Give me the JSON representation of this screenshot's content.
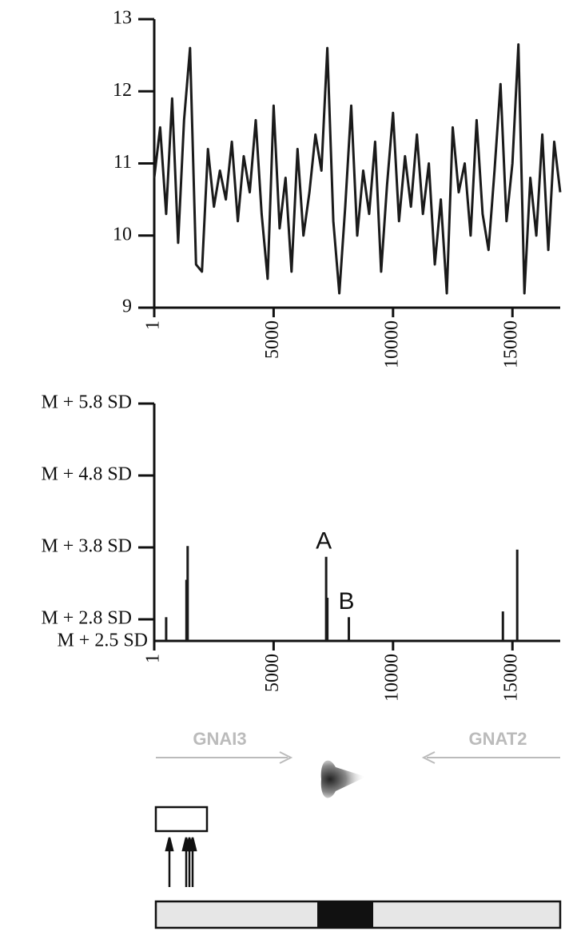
{
  "chart_data": [
    {
      "type": "line",
      "color": "#1a1a1a",
      "x": [
        1,
        250,
        500,
        750,
        1000,
        1250,
        1500,
        1750,
        2000,
        2250,
        2500,
        2750,
        3000,
        3250,
        3500,
        3750,
        4000,
        4250,
        4500,
        4750,
        5000,
        5250,
        5500,
        5750,
        6000,
        6250,
        6500,
        6750,
        7000,
        7250,
        7500,
        7750,
        8000,
        8250,
        8500,
        8750,
        9000,
        9250,
        9500,
        9750,
        10000,
        10250,
        10500,
        10750,
        11000,
        11250,
        11500,
        11750,
        12000,
        12250,
        12500,
        12750,
        13000,
        13250,
        13500,
        13750,
        14000,
        14250,
        14500,
        14750,
        15000,
        15250,
        15500,
        15750,
        16000,
        16250,
        16500,
        16750,
        17000
      ],
      "values": [
        10.8,
        11.5,
        10.3,
        11.9,
        9.9,
        11.6,
        12.6,
        9.6,
        9.5,
        11.2,
        10.4,
        10.9,
        10.5,
        11.3,
        10.2,
        11.1,
        10.6,
        11.6,
        10.3,
        9.4,
        11.8,
        10.1,
        10.8,
        9.5,
        11.2,
        10.0,
        10.6,
        11.4,
        10.9,
        12.6,
        10.2,
        9.2,
        10.4,
        11.8,
        10.0,
        10.9,
        10.3,
        11.3,
        9.5,
        10.7,
        11.7,
        10.2,
        11.1,
        10.4,
        11.4,
        10.3,
        11.0,
        9.6,
        10.5,
        9.2,
        11.5,
        10.6,
        11.0,
        10.0,
        11.6,
        10.3,
        9.8,
        10.9,
        12.1,
        10.2,
        11.0,
        12.65,
        9.2,
        10.8,
        10.0,
        11.4,
        9.8,
        11.3,
        10.6
      ],
      "xlim": [
        1,
        17000
      ],
      "xticks": [
        1,
        5000,
        10000,
        15000
      ],
      "ylim": [
        9,
        13
      ],
      "yticks": [
        9,
        10,
        11,
        12,
        13
      ]
    },
    {
      "type": "spike",
      "color": "#1a1a1a",
      "x": [
        500,
        1350,
        1400,
        7200,
        7250,
        8150,
        14600,
        15200
      ],
      "values": [
        2.83,
        3.35,
        3.82,
        3.67,
        3.1,
        2.83,
        2.91,
        3.77
      ],
      "annotations": [
        "A",
        "B"
      ],
      "xlim": [
        1,
        17000
      ],
      "xticks": [
        1,
        5000,
        10000,
        15000
      ],
      "ylim": [
        2.5,
        5.8
      ],
      "yticks": [
        {
          "value": 5.8,
          "label": "M + 5.8 SD"
        },
        {
          "value": 4.8,
          "label": "M + 4.8 SD"
        },
        {
          "value": 3.8,
          "label": "M + 3.8 SD"
        },
        {
          "value": 2.8,
          "label": "M + 2.8 SD"
        },
        {
          "value": 2.5,
          "label": "M + 2.5 SD"
        }
      ]
    }
  ],
  "diagram": {
    "genes": [
      "GNAI3",
      "GNAT2"
    ]
  }
}
